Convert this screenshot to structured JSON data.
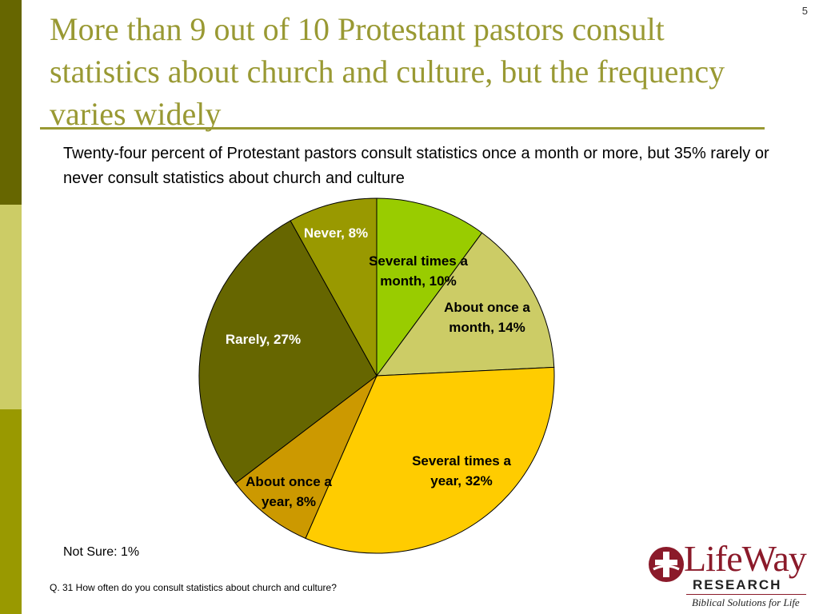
{
  "slide": {
    "number": "5",
    "title": "More than 9 out of 10 Protestant pastors consult statistics about church and culture, but the frequency varies widely",
    "subtitle": "Twenty-four percent of Protestant pastors consult statistics once a month or more, but 35% rarely or never consult statistics about church and culture",
    "footnote": "Not Sure: 1%",
    "question": "Q. 31 How often do you consult statistics about church and culture?"
  },
  "logo": {
    "word": "LifeWay",
    "sub": "RESEARCH",
    "tagline": "Biblical Solutions for Life",
    "color": "#8b1a2a"
  },
  "colors": {
    "sidebar": [
      "#666600",
      "#cccc66",
      "#999900"
    ],
    "title": "#999933"
  },
  "chart_data": {
    "type": "pie",
    "title": "",
    "start_angle_deg": 0,
    "direction": "clockwise",
    "slices": [
      {
        "label": "Several times a month",
        "value": 10,
        "display": "Several times a month, 10%",
        "color": "#99cc00",
        "text_color": "#000000"
      },
      {
        "label": "About once a month",
        "value": 14,
        "display": "About once a month, 14%",
        "color": "#cccc66",
        "text_color": "#000000"
      },
      {
        "label": "Several times a year",
        "value": 32,
        "display": "Several times a year, 32%",
        "color": "#ffcc00",
        "text_color": "#000000"
      },
      {
        "label": "About once a year",
        "value": 8,
        "display": "About once a year, 8%",
        "color": "#cc9900",
        "text_color": "#000000"
      },
      {
        "label": "Rarely",
        "value": 27,
        "display": "Rarely, 27%",
        "color": "#666600",
        "text_color": "#ffffff"
      },
      {
        "label": "Never",
        "value": 8,
        "display": "Never, 8%",
        "color": "#999900",
        "text_color": "#ffffff"
      }
    ],
    "labels": [
      {
        "lines": [
          "Several times a",
          "month, 10%"
        ]
      },
      {
        "lines": [
          "About once a",
          "month, 14%"
        ]
      },
      {
        "lines": [
          "Several times a",
          "year, 32%"
        ]
      },
      {
        "lines": [
          "About once a",
          "year, 8%"
        ]
      },
      {
        "lines": [
          "Rarely, 27%"
        ]
      },
      {
        "lines": [
          "Never, 8%"
        ]
      }
    ]
  }
}
